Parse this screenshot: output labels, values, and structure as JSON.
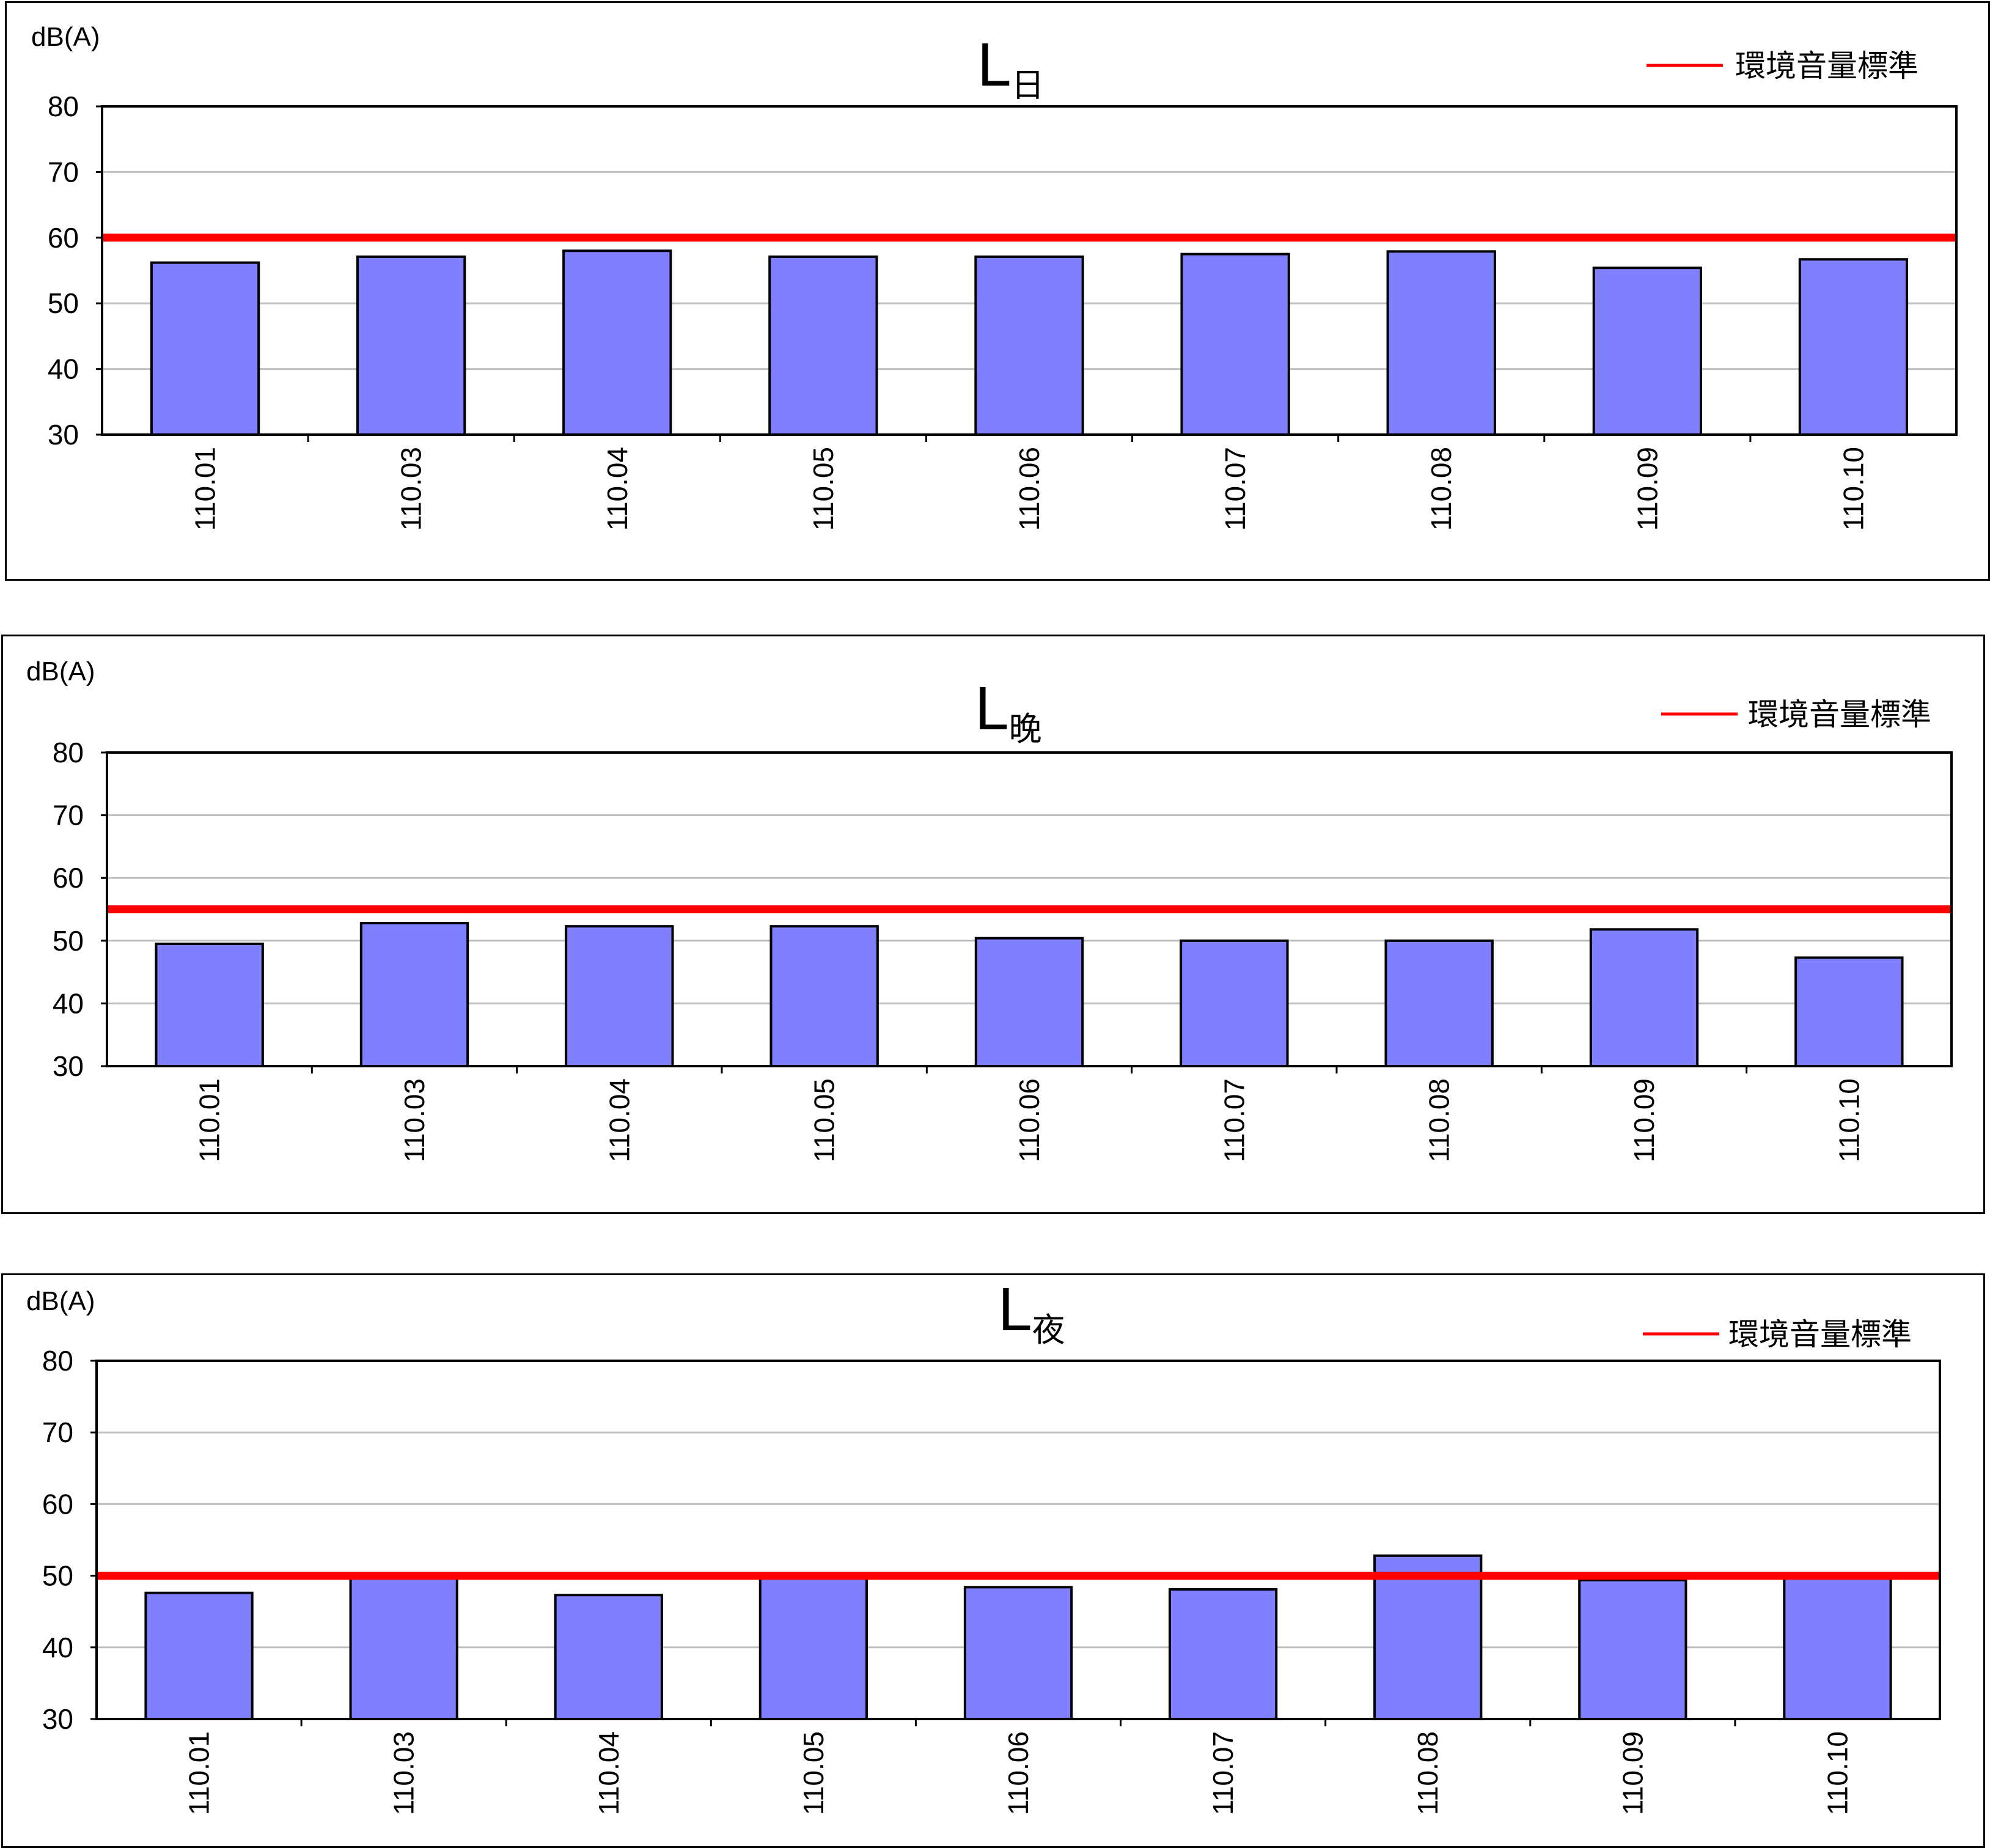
{
  "chart_data": [
    {
      "type": "bar",
      "title": "L",
      "title_subscript": "日",
      "ylabel": "dB(A)",
      "ylim": [
        30,
        80
      ],
      "yticks": [
        30,
        40,
        50,
        60,
        70,
        80
      ],
      "grid": true,
      "legend_position": "top-right",
      "categories": [
        "110.01",
        "110.03",
        "110.04",
        "110.05",
        "110.06",
        "110.07",
        "110.08",
        "110.09",
        "110.10"
      ],
      "series": [
        {
          "values": [
            56.2,
            57.1,
            58.0,
            57.1,
            57.1,
            57.5,
            57.9,
            55.4,
            56.7
          ],
          "color": "#8080ff"
        }
      ],
      "reference_line": {
        "name": "環境音量標準",
        "value": 60,
        "color": "#ff0000"
      }
    },
    {
      "type": "bar",
      "title": "L",
      "title_subscript": "晚",
      "ylabel": "dB(A)",
      "ylim": [
        30,
        80
      ],
      "yticks": [
        30,
        40,
        50,
        60,
        70,
        80
      ],
      "grid": true,
      "legend_position": "top-right",
      "categories": [
        "110.01",
        "110.03",
        "110.04",
        "110.05",
        "110.06",
        "110.07",
        "110.08",
        "110.09",
        "110.10"
      ],
      "series": [
        {
          "values": [
            49.5,
            52.8,
            52.3,
            52.3,
            50.4,
            50.0,
            50.0,
            51.8,
            47.3
          ],
          "color": "#8080ff"
        }
      ],
      "reference_line": {
        "name": "環境音量標準",
        "value": 55,
        "color": "#ff0000"
      }
    },
    {
      "type": "bar",
      "title": "L",
      "title_subscript": "夜",
      "ylabel": "dB(A)",
      "ylim": [
        30,
        80
      ],
      "yticks": [
        30,
        40,
        50,
        60,
        70,
        80
      ],
      "grid": true,
      "legend_position": "top-right",
      "categories": [
        "110.01",
        "110.03",
        "110.04",
        "110.05",
        "110.06",
        "110.07",
        "110.08",
        "110.09",
        "110.10"
      ],
      "series": [
        {
          "values": [
            47.6,
            50.1,
            47.3,
            50.1,
            48.4,
            48.1,
            52.8,
            49.4,
            50.1
          ],
          "color": "#8080ff"
        }
      ],
      "reference_line": {
        "name": "環境音量標準",
        "value": 50,
        "color": "#ff0000"
      }
    }
  ]
}
